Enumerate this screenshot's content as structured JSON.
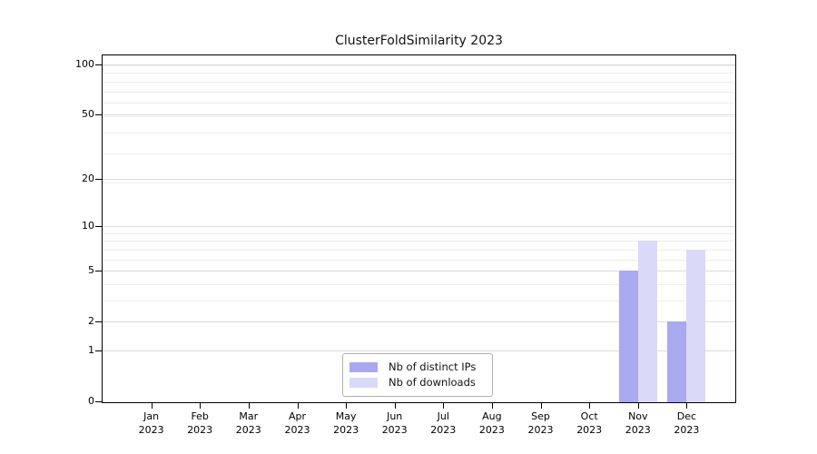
{
  "figure": {
    "background_color": "#ffffff",
    "text_color": "#111111"
  },
  "chart_data": {
    "type": "bar",
    "title": "ClusterFoldSimilarity 2023",
    "xlabel": "",
    "ylabel": "",
    "categories": [
      "Jan",
      "Feb",
      "Mar",
      "Apr",
      "May",
      "Jun",
      "Jul",
      "Aug",
      "Sep",
      "Oct",
      "Nov",
      "Dec"
    ],
    "category_year": "2023",
    "series": [
      {
        "name": "Nb of distinct IPs",
        "color": "#a9a9f0",
        "values": [
          0,
          0,
          0,
          0,
          0,
          0,
          0,
          0,
          0,
          0,
          5,
          2
        ]
      },
      {
        "name": "Nb of downloads",
        "color": "#d9d9f8",
        "values": [
          0,
          0,
          0,
          0,
          0,
          0,
          0,
          0,
          0,
          0,
          8,
          7
        ]
      }
    ],
    "yscale": "log1p",
    "yticks": [
      0,
      1,
      2,
      5,
      10,
      20,
      50,
      100
    ],
    "ylim": [
      0,
      113
    ],
    "grid": "on",
    "legend_position": "bottom-center",
    "grid_major_color": "#dbdbdb",
    "grid_minor_color": "#ededed"
  }
}
